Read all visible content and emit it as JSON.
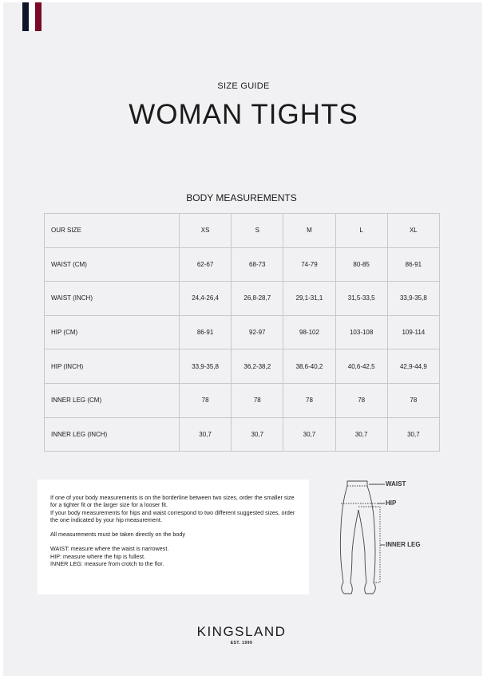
{
  "brand": {
    "flag_colors": [
      "#0e1526",
      "#ffffff",
      "#7a0a26"
    ],
    "name": "KINGSLAND",
    "est": "EST. 1999"
  },
  "header": {
    "subtitle": "SIZE GUIDE",
    "title": "WOMAN TIGHTS"
  },
  "section_title": "BODY MEASUREMENTS",
  "table": {
    "headers": [
      "OUR SIZE",
      "XS",
      "S",
      "M",
      "L",
      "XL"
    ],
    "rows": [
      [
        "WAIST (CM)",
        "62-67",
        "68-73",
        "74-79",
        "80-85",
        "86-91"
      ],
      [
        "WAIST (INCH)",
        "24,4-26,4",
        "26,8-28,7",
        "29,1-31,1",
        "31,5-33,5",
        "33,9-35,8"
      ],
      [
        "HIP (CM)",
        "86-91",
        "92-97",
        "98-102",
        "103-108",
        "109-114"
      ],
      [
        "HIP (INCH)",
        "33,9-35,8",
        "36,2-38,2",
        "38,6-40,2",
        "40,6-42,5",
        "42,9-44,9"
      ],
      [
        "INNER LEG (CM)",
        "78",
        "78",
        "78",
        "78",
        "78"
      ],
      [
        "INNER LEG (INCH)",
        "30,7",
        "30,7",
        "30,7",
        "30,7",
        "30,7"
      ]
    ]
  },
  "notes": {
    "p1": "If one of your body measurements is on the borderline between two sizes, order the smaller size for a tighter fit or the larger size for a looser fit.",
    "p1b": "If your body measurements for hips and waist correspond to two different suggested sizes, order the one indicated by your hip measurement.",
    "p2": "All measurements must be taken directly on the body",
    "p3": "WAIST: measure where the waist is narrowest.",
    "p4": "HIP: measure where the hip is fullest.",
    "p5": "INNER LEG: measure from crotch to the flor."
  },
  "diagram": {
    "waist": "WAIST",
    "hip": "HIP",
    "inner_leg": "INNER LEG"
  }
}
